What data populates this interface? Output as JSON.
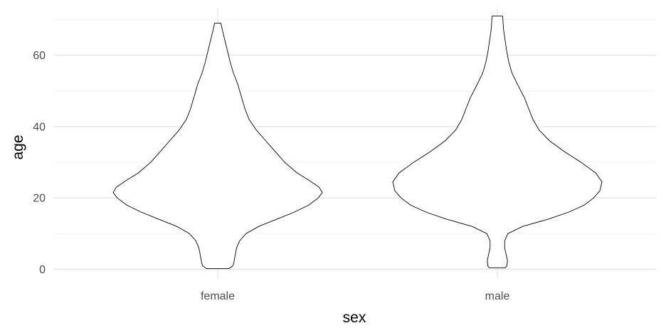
{
  "chart_data": {
    "type": "violin",
    "xlabel": "sex",
    "ylabel": "age",
    "categories": [
      "female",
      "male"
    ],
    "ylim": [
      -2.5,
      72.5
    ],
    "yticks": [
      0,
      20,
      40,
      60
    ],
    "y_minor_ticks": [
      10,
      30,
      50,
      70
    ],
    "grid": true,
    "colors": {
      "fill": "#ffffff",
      "outline": "#000000",
      "grid": "#e6e6e6"
    },
    "series": [
      {
        "category": "female",
        "y_range": [
          0.17,
          69
        ],
        "density_profile": [
          {
            "y": 0.17,
            "w": 0.107
          },
          {
            "y": 1,
            "w": 0.145
          },
          {
            "y": 2,
            "w": 0.155
          },
          {
            "y": 4,
            "w": 0.167
          },
          {
            "y": 6,
            "w": 0.18
          },
          {
            "y": 8,
            "w": 0.21
          },
          {
            "y": 10,
            "w": 0.27
          },
          {
            "y": 12,
            "w": 0.39
          },
          {
            "y": 14,
            "w": 0.56
          },
          {
            "y": 16,
            "w": 0.73
          },
          {
            "y": 18,
            "w": 0.87
          },
          {
            "y": 20,
            "w": 0.96
          },
          {
            "y": 21.5,
            "w": 1.0
          },
          {
            "y": 23,
            "w": 0.97
          },
          {
            "y": 25,
            "w": 0.87
          },
          {
            "y": 27,
            "w": 0.76
          },
          {
            "y": 30,
            "w": 0.64
          },
          {
            "y": 33,
            "w": 0.55
          },
          {
            "y": 36,
            "w": 0.46
          },
          {
            "y": 39,
            "w": 0.37
          },
          {
            "y": 42,
            "w": 0.3
          },
          {
            "y": 45,
            "w": 0.26
          },
          {
            "y": 48,
            "w": 0.23
          },
          {
            "y": 52,
            "w": 0.19
          },
          {
            "y": 55,
            "w": 0.15
          },
          {
            "y": 58,
            "w": 0.12
          },
          {
            "y": 61,
            "w": 0.095
          },
          {
            "y": 64,
            "w": 0.07
          },
          {
            "y": 67,
            "w": 0.045
          },
          {
            "y": 69,
            "w": 0.03
          }
        ]
      },
      {
        "category": "male",
        "y_range": [
          0.42,
          71
        ],
        "density_profile": [
          {
            "y": 0.42,
            "w": 0.077
          },
          {
            "y": 1,
            "w": 0.092
          },
          {
            "y": 2.5,
            "w": 0.096
          },
          {
            "y": 4,
            "w": 0.085
          },
          {
            "y": 6,
            "w": 0.07
          },
          {
            "y": 8,
            "w": 0.07
          },
          {
            "y": 10,
            "w": 0.1
          },
          {
            "y": 12,
            "w": 0.24
          },
          {
            "y": 14,
            "w": 0.48
          },
          {
            "y": 16,
            "w": 0.68
          },
          {
            "y": 18,
            "w": 0.83
          },
          {
            "y": 20,
            "w": 0.92
          },
          {
            "y": 22,
            "w": 0.98
          },
          {
            "y": 24.5,
            "w": 1.0
          },
          {
            "y": 27,
            "w": 0.94
          },
          {
            "y": 30,
            "w": 0.8
          },
          {
            "y": 33,
            "w": 0.64
          },
          {
            "y": 36,
            "w": 0.5
          },
          {
            "y": 39,
            "w": 0.4
          },
          {
            "y": 42,
            "w": 0.34
          },
          {
            "y": 45,
            "w": 0.3
          },
          {
            "y": 48,
            "w": 0.26
          },
          {
            "y": 52,
            "w": 0.19
          },
          {
            "y": 55,
            "w": 0.14
          },
          {
            "y": 58,
            "w": 0.11
          },
          {
            "y": 61,
            "w": 0.09
          },
          {
            "y": 64,
            "w": 0.075
          },
          {
            "y": 67,
            "w": 0.06
          },
          {
            "y": 71,
            "w": 0.05
          }
        ]
      }
    ]
  }
}
